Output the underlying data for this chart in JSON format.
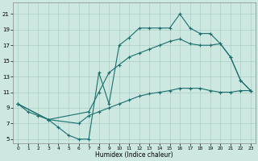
{
  "xlabel": "Humidex (Indice chaleur)",
  "bg_color": "#cce8e0",
  "grid_color": "#aacfc8",
  "line_color": "#1a6e6e",
  "xlim": [
    -0.5,
    23.5
  ],
  "ylim": [
    4.5,
    22.5
  ],
  "xticks": [
    0,
    1,
    2,
    3,
    4,
    5,
    6,
    7,
    8,
    9,
    10,
    11,
    12,
    13,
    14,
    15,
    16,
    17,
    18,
    19,
    20,
    21,
    22,
    23
  ],
  "yticks": [
    5,
    7,
    9,
    11,
    13,
    15,
    17,
    19,
    21
  ],
  "line1_x": [
    0,
    1,
    2,
    3,
    4,
    5,
    6,
    7,
    8,
    9,
    10,
    11,
    12,
    13,
    14,
    15,
    16,
    17,
    18,
    19,
    20,
    21,
    22,
    23
  ],
  "line1_y": [
    9.5,
    8.5,
    8.0,
    7.5,
    6.5,
    5.5,
    5.0,
    5.0,
    13.5,
    9.5,
    17.0,
    18.0,
    19.2,
    19.2,
    19.2,
    19.2,
    21.0,
    19.2,
    18.5,
    18.5,
    17.2,
    15.5,
    12.5,
    11.2
  ],
  "line2_x": [
    0,
    3,
    7,
    8,
    9,
    10,
    11,
    12,
    13,
    14,
    15,
    16,
    17,
    18,
    19,
    20,
    21,
    22,
    23
  ],
  "line2_y": [
    9.5,
    7.5,
    8.5,
    11.0,
    13.5,
    14.5,
    15.5,
    16.0,
    16.5,
    17.0,
    17.5,
    17.8,
    17.2,
    17.0,
    17.0,
    17.2,
    15.5,
    12.5,
    11.2
  ],
  "line3_x": [
    0,
    3,
    6,
    7,
    8,
    9,
    10,
    11,
    12,
    13,
    14,
    15,
    16,
    17,
    18,
    19,
    20,
    21,
    22,
    23
  ],
  "line3_y": [
    9.5,
    7.5,
    7.0,
    8.0,
    8.5,
    9.0,
    9.5,
    10.0,
    10.5,
    10.8,
    11.0,
    11.2,
    11.5,
    11.5,
    11.5,
    11.2,
    11.0,
    11.0,
    11.2,
    11.2
  ]
}
